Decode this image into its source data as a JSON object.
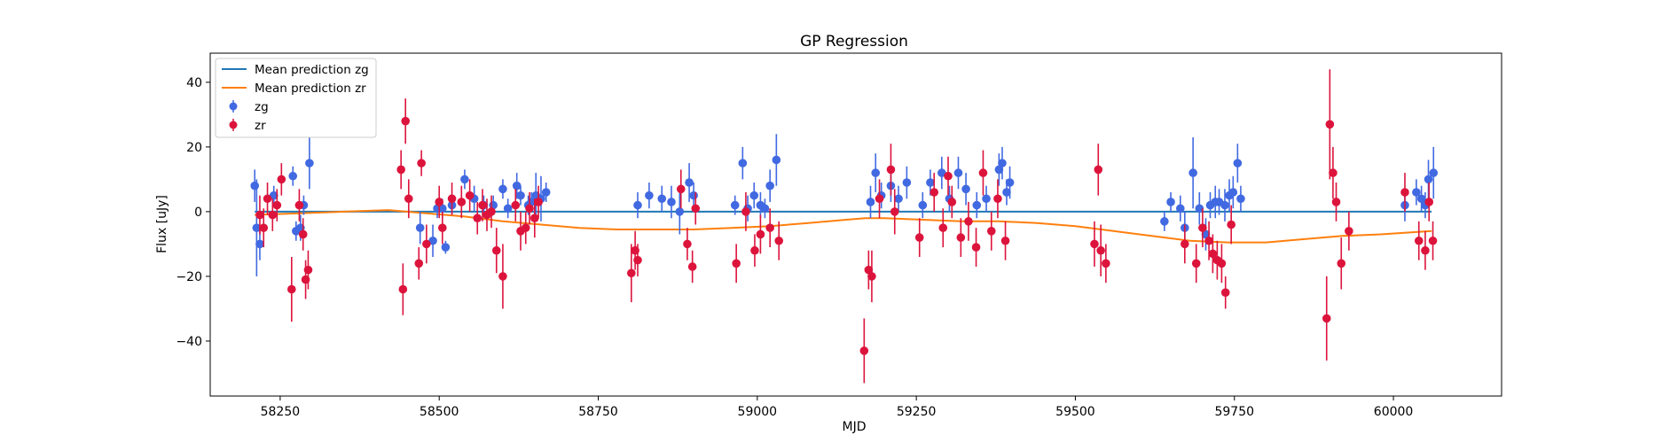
{
  "chart_data": {
    "type": "scatter",
    "title": "GP Regression",
    "xlabel": "MJD",
    "ylabel": "Flux [uJy]",
    "xlim": [
      58140,
      60170
    ],
    "ylim": [
      -57,
      49
    ],
    "xticks": [
      58250,
      58500,
      58750,
      59000,
      59250,
      59500,
      59750,
      60000
    ],
    "yticks": [
      -40,
      -20,
      0,
      20,
      40
    ],
    "grid": false,
    "legend_position": "top-left",
    "legend": [
      "Mean prediction zg",
      "Mean prediction zr",
      "zg",
      "zr"
    ],
    "colors": {
      "zg_points": "#4169e1",
      "zr_points": "#dc143c",
      "mean_zg": "#1f77b4",
      "mean_zr": "#ff7f0e"
    },
    "series": [
      {
        "name": "Mean prediction zg",
        "kind": "line",
        "x": [
          58210,
          58400,
          58600,
          58800,
          59000,
          59200,
          59400,
          59600,
          59800,
          60000,
          60060
        ],
        "y": [
          0,
          0,
          0,
          0,
          0,
          0,
          0,
          0,
          0,
          0,
          0
        ]
      },
      {
        "name": "Mean prediction zr",
        "kind": "line",
        "x": [
          58210,
          58280,
          58350,
          58420,
          58480,
          58540,
          58600,
          58660,
          58720,
          58780,
          58840,
          58900,
          58960,
          59020,
          59080,
          59140,
          59170,
          59200,
          59260,
          59320,
          59380,
          59440,
          59500,
          59560,
          59620,
          59680,
          59740,
          59800,
          59860,
          59920,
          59980,
          60060
        ],
        "y": [
          -1,
          -0.5,
          0,
          0.5,
          -0.5,
          -1.5,
          -3,
          -4,
          -5,
          -5.5,
          -5.5,
          -5.5,
          -5,
          -4.5,
          -3.5,
          -2.5,
          -2,
          -2,
          -2.5,
          -3,
          -3,
          -3.5,
          -4.5,
          -6,
          -7.5,
          -9,
          -9.5,
          -9.5,
          -8.5,
          -7.5,
          -7,
          -6
        ]
      },
      {
        "name": "zg",
        "kind": "errorbar",
        "x": [
          58210,
          58213,
          58218,
          58240,
          58270,
          58275,
          58282,
          58287,
          58296,
          58470,
          58490,
          58497,
          58505,
          58510,
          58520,
          58540,
          58555,
          58570,
          58585,
          58600,
          58608,
          58622,
          58628,
          58640,
          58645,
          58652,
          58660,
          58668,
          58812,
          58830,
          58850,
          58865,
          58878,
          58893,
          58900,
          58965,
          58977,
          58985,
          58995,
          59005,
          59012,
          59020,
          59030,
          59178,
          59186,
          59195,
          59210,
          59222,
          59235,
          59260,
          59272,
          59290,
          59302,
          59316,
          59328,
          59345,
          59360,
          59380,
          59385,
          59392,
          59397,
          59640,
          59650,
          59665,
          59672,
          59685,
          59695,
          59705,
          59712,
          59720,
          59726,
          59735,
          59742,
          59748,
          59755,
          59760,
          60018,
          60036,
          60044,
          60050,
          60055,
          60063
        ],
        "y": [
          8,
          -5,
          -10,
          5,
          11,
          -6,
          -5,
          2,
          15,
          -5,
          -9,
          1,
          1,
          -11,
          2,
          10,
          4,
          2,
          2,
          7,
          1,
          8,
          5,
          2,
          3,
          5,
          4,
          6,
          2,
          5,
          4,
          3,
          0,
          9,
          5,
          2,
          15,
          1,
          5,
          2,
          1,
          8,
          16,
          3,
          12,
          5,
          8,
          4,
          9,
          2,
          9,
          12,
          4,
          12,
          7,
          2,
          4,
          13,
          15,
          6,
          9,
          -3,
          3,
          1,
          -5,
          12,
          1,
          -7,
          2,
          3,
          3,
          2,
          5,
          6,
          15,
          4,
          2,
          6,
          4,
          2,
          10,
          12
        ],
        "err": [
          5,
          15,
          5,
          3,
          3,
          3,
          4,
          3,
          8,
          5,
          5,
          3,
          3,
          2,
          3,
          3,
          4,
          3,
          3,
          3,
          3,
          4,
          3,
          3,
          3,
          7,
          7,
          3,
          4,
          4,
          4,
          5,
          7,
          6,
          4,
          3,
          5,
          4,
          4,
          4,
          3,
          5,
          8,
          5,
          6,
          4,
          5,
          4,
          5,
          4,
          4,
          5,
          4,
          5,
          5,
          4,
          4,
          5,
          5,
          4,
          5,
          3,
          3,
          4,
          5,
          11,
          5,
          5,
          4,
          5,
          4,
          5,
          5,
          5,
          6,
          4,
          5,
          4,
          4,
          4,
          6,
          8
        ]
      },
      {
        "name": "zr",
        "kind": "errorbar",
        "x": [
          58218,
          58224,
          58230,
          58238,
          58245,
          58252,
          58268,
          58280,
          58286,
          58290,
          58294,
          58440,
          58443,
          58447,
          58452,
          58468,
          58472,
          58480,
          58500,
          58505,
          58520,
          58535,
          58548,
          58560,
          58568,
          58575,
          58582,
          58590,
          58600,
          58620,
          58628,
          58636,
          58642,
          58650,
          58656,
          58802,
          58808,
          58812,
          58880,
          58890,
          58898,
          58903,
          58967,
          58982,
          58996,
          59005,
          59020,
          59034,
          59168,
          59175,
          59180,
          59192,
          59210,
          59216,
          59255,
          59278,
          59292,
          59300,
          59306,
          59320,
          59332,
          59344,
          59355,
          59368,
          59378,
          59390,
          59530,
          59536,
          59540,
          59548,
          59672,
          59690,
          59700,
          59710,
          59716,
          59723,
          59730,
          59736,
          59745,
          59895,
          59900,
          59905,
          59910,
          59918,
          59930,
          60018,
          60040,
          60050,
          60056,
          60062
        ],
        "y": [
          -1,
          -5,
          4,
          -1,
          2,
          10,
          -24,
          2,
          -7,
          -21,
          -18,
          13,
          -24,
          28,
          4,
          -16,
          15,
          -10,
          3,
          -5,
          4,
          3,
          5,
          -2,
          2,
          -1,
          0,
          -12,
          -20,
          2,
          -6,
          -5,
          1,
          -2,
          3,
          -19,
          -12,
          -15,
          7,
          -10,
          -17,
          1,
          -16,
          0,
          -12,
          -7,
          -5,
          -9,
          -43,
          -18,
          -20,
          4,
          13,
          0,
          -8,
          6,
          -5,
          11,
          3,
          -8,
          -3,
          -11,
          12,
          -6,
          4,
          -9,
          -10,
          13,
          -12,
          -16,
          -10,
          -16,
          -5,
          -9,
          -13,
          -15,
          -16,
          -25,
          -4,
          -33,
          27,
          12,
          3,
          -16,
          -6,
          6,
          -9,
          -12,
          3,
          -9
        ],
        "err": [
          6,
          6,
          5,
          5,
          5,
          5,
          10,
          5,
          5,
          6,
          6,
          6,
          8,
          7,
          6,
          5,
          4,
          6,
          5,
          5,
          5,
          5,
          5,
          5,
          5,
          5,
          5,
          7,
          10,
          5,
          6,
          5,
          5,
          6,
          5,
          9,
          6,
          5,
          6,
          5,
          5,
          5,
          6,
          6,
          5,
          6,
          6,
          6,
          10,
          6,
          8,
          6,
          8,
          7,
          6,
          6,
          6,
          6,
          5,
          6,
          6,
          6,
          7,
          6,
          6,
          6,
          7,
          8,
          8,
          6,
          6,
          6,
          6,
          6,
          6,
          6,
          6,
          5,
          6,
          13,
          17,
          8,
          6,
          8,
          6,
          6,
          6,
          6,
          6,
          6
        ]
      }
    ]
  }
}
